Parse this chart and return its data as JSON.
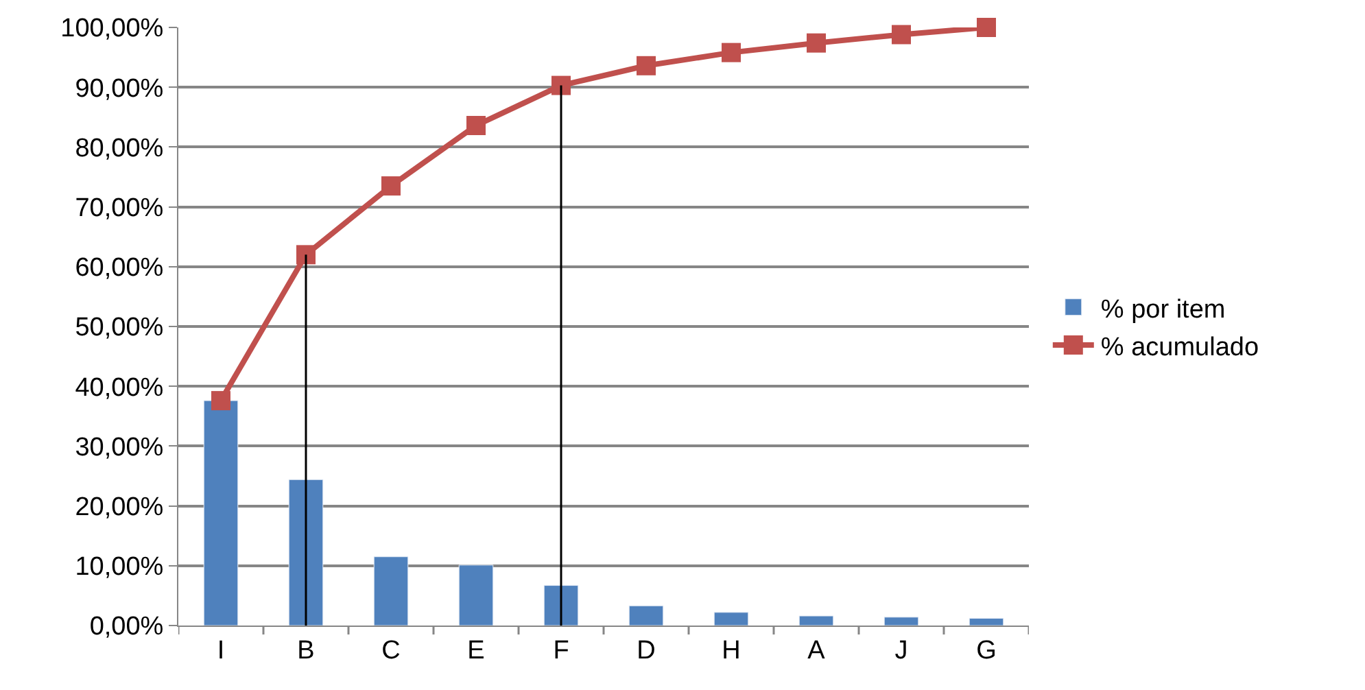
{
  "chart_data": {
    "type": "bar",
    "categories": [
      "I",
      "B",
      "C",
      "E",
      "F",
      "D",
      "H",
      "A",
      "J",
      "G"
    ],
    "series": [
      {
        "name": "% por item",
        "color": "#4f81bd",
        "values": [
          37.6,
          24.4,
          11.5,
          10.1,
          6.7,
          3.3,
          2.2,
          1.6,
          1.4,
          1.2
        ]
      },
      {
        "name": "% acumulado",
        "type": "line",
        "color": "#c0504d",
        "marker": "square",
        "values": [
          37.6,
          62.0,
          73.5,
          83.6,
          90.3,
          93.6,
          95.8,
          97.4,
          98.8,
          100.0
        ]
      }
    ],
    "ylim": [
      0,
      100
    ],
    "yticks": [
      {
        "value": 0,
        "label": "0,00%"
      },
      {
        "value": 10,
        "label": "10,00%"
      },
      {
        "value": 20,
        "label": "20,00%"
      },
      {
        "value": 30,
        "label": "30,00%"
      },
      {
        "value": 40,
        "label": "40,00%"
      },
      {
        "value": 50,
        "label": "50,00%"
      },
      {
        "value": 60,
        "label": "60,00%"
      },
      {
        "value": 70,
        "label": "70,00%"
      },
      {
        "value": 80,
        "label": "80,00%"
      },
      {
        "value": 90,
        "label": "90,00%"
      },
      {
        "value": 100,
        "label": "100,00%"
      }
    ],
    "grid": "y",
    "legend": "right",
    "ref_lines": [
      {
        "axis": "x",
        "value": "B",
        "color": "#000000"
      },
      {
        "axis": "x",
        "value": "F",
        "color": "#000000"
      }
    ]
  }
}
